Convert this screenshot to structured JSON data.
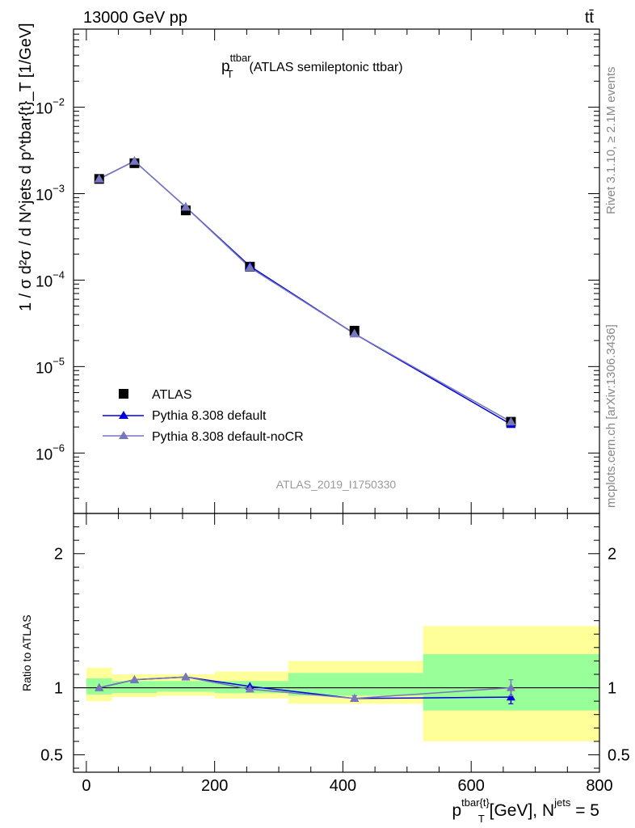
{
  "header": {
    "left": "13000 GeV pp",
    "right": "tt̄"
  },
  "side": {
    "rivet": "Rivet 3.1.10, ≥ 2.1M events",
    "mcplots": "mcplots.cern.ch [arXiv:1306.3436]"
  },
  "colors": {
    "data": "#000000",
    "default": "#0000dd",
    "nocr": "#7777bb",
    "band_outer": "#ffff99",
    "band_inner": "#99ff99"
  },
  "chart_data": [
    {
      "type": "line",
      "title_main": "p",
      "title_sup": "ttbar",
      "title_sub": "T",
      "title_rest": "(ATLAS semileptonic ttbar)",
      "ylabel": "1 / σ d²σ / d N^jets d p^tbar{t}_T [1/GeV]",
      "analysis_label": "ATLAS_2019_I1750330",
      "yscale": "log",
      "xlim": [
        -20,
        800
      ],
      "ylim": [
        2e-07,
        0.08
      ],
      "y_tick_labels": [
        {
          "value": 0.01,
          "base": "10",
          "exp": "−2"
        },
        {
          "value": 0.001,
          "base": "10",
          "exp": "−3"
        },
        {
          "value": 0.0001,
          "base": "10",
          "exp": "−4"
        },
        {
          "value": 1e-05,
          "base": "10",
          "exp": "−5"
        },
        {
          "value": 1e-06,
          "base": "10",
          "exp": "−6"
        }
      ],
      "legend": [
        {
          "key": "data",
          "label": "ATLAS"
        },
        {
          "key": "default",
          "label": "Pythia 8.308 default"
        },
        {
          "key": "nocr",
          "label": "Pythia 8.308 default-noCR"
        }
      ],
      "bins": [
        0,
        40,
        110,
        200,
        315,
        525,
        800
      ],
      "x": [
        20,
        75,
        155,
        255,
        418,
        662
      ],
      "series": [
        {
          "name": "ATLAS",
          "key": "data",
          "values": [
            0.00148,
            0.00225,
            0.00064,
            0.000143,
            2.6e-05,
            2.3e-06
          ]
        },
        {
          "name": "Pythia 8.308 default",
          "key": "default",
          "values": [
            0.00148,
            0.00238,
            0.0007,
            0.000145,
            2.4e-05,
            2.15e-06
          ]
        },
        {
          "name": "Pythia 8.308 default-noCR",
          "key": "nocr",
          "values": [
            0.00148,
            0.00238,
            0.0007,
            0.00014,
            2.4e-05,
            2.3e-06
          ]
        }
      ]
    },
    {
      "type": "line",
      "ylabel": "Ratio to ATLAS",
      "xlabel_main": "p",
      "xlabel_sup": "tbar{t}",
      "xlabel_sub": "T",
      "xlabel_rest": " [GeV], N",
      "xlabel_sup2": "jets",
      "xlabel_end": " = 5",
      "xlim": [
        -20,
        800
      ],
      "ylim": [
        0.37,
        2.3
      ],
      "x_ticks": [
        0,
        200,
        400,
        600,
        800
      ],
      "x_tick_labels": [
        "0",
        "200",
        "400",
        "600",
        "800"
      ],
      "y_ticks": [
        0.5,
        1,
        2
      ],
      "y_tick_labels": [
        "0.5",
        "1",
        "2"
      ],
      "bands": [
        {
          "x0": 0,
          "x1": 40,
          "inner": [
            0.95,
            1.07
          ],
          "outer": [
            0.9,
            1.15
          ]
        },
        {
          "x0": 40,
          "x1": 110,
          "inner": [
            0.96,
            1.05
          ],
          "outer": [
            0.93,
            1.1
          ]
        },
        {
          "x0": 110,
          "x1": 200,
          "inner": [
            0.97,
            1.05
          ],
          "outer": [
            0.94,
            1.1
          ]
        },
        {
          "x0": 200,
          "x1": 315,
          "inner": [
            0.96,
            1.05
          ],
          "outer": [
            0.92,
            1.12
          ]
        },
        {
          "x0": 315,
          "x1": 525,
          "inner": [
            0.94,
            1.11
          ],
          "outer": [
            0.88,
            1.2
          ]
        },
        {
          "x0": 525,
          "x1": 800,
          "inner": [
            0.83,
            1.25
          ],
          "outer": [
            0.6,
            1.46
          ]
        }
      ],
      "series": [
        {
          "name": "Pythia 8.308 default",
          "key": "default",
          "values": [
            1.0,
            1.06,
            1.08,
            1.01,
            0.92,
            0.93
          ],
          "err": [
            0,
            0,
            0,
            0,
            0.02,
            0.05
          ]
        },
        {
          "name": "Pythia 8.308 default-noCR",
          "key": "nocr",
          "values": [
            1.0,
            1.06,
            1.08,
            0.99,
            0.92,
            1.0
          ],
          "err": [
            0,
            0,
            0,
            0,
            0.02,
            0.06
          ]
        }
      ]
    }
  ]
}
